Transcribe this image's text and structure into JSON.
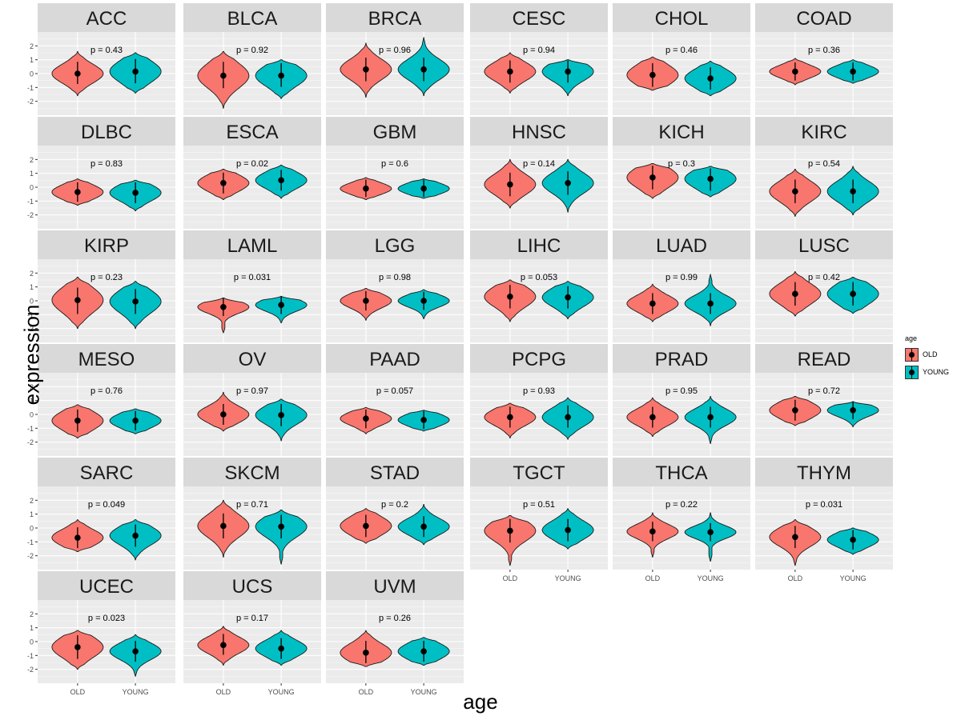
{
  "chart_data": {
    "type": "violin",
    "title": "",
    "xlabel": "age",
    "ylabel": "expression",
    "categories": [
      "OLD",
      "YOUNG"
    ],
    "ylim": [
      -3,
      3
    ],
    "yticks": [
      -2,
      -1,
      0,
      1,
      2
    ],
    "legend": {
      "title": "age",
      "position": "right",
      "entries": [
        {
          "name": "OLD",
          "color": "#F8766D"
        },
        {
          "name": "YOUNG",
          "color": "#00BFC4"
        }
      ]
    },
    "panels": [
      {
        "name": "ACC",
        "p": "p = 0.43",
        "old": {
          "med": 0.0,
          "lo": -1.6,
          "hi": 1.6,
          "q1": -0.4,
          "q3": 0.5
        },
        "young": {
          "med": 0.15,
          "lo": -1.4,
          "hi": 1.5,
          "q1": -0.35,
          "q3": 0.7
        }
      },
      {
        "name": "BLCA",
        "p": "p = 0.92",
        "old": {
          "med": -0.15,
          "lo": -2.5,
          "hi": 1.6,
          "q1": -0.7,
          "q3": 0.5
        },
        "young": {
          "med": -0.15,
          "lo": -1.8,
          "hi": 1.0,
          "q1": -0.6,
          "q3": 0.4
        }
      },
      {
        "name": "BRCA",
        "p": "p = 0.96",
        "old": {
          "med": 0.3,
          "lo": -1.7,
          "hi": 2.2,
          "q1": -0.2,
          "q3": 0.8
        },
        "young": {
          "med": 0.3,
          "lo": -1.6,
          "hi": 2.6,
          "q1": -0.2,
          "q3": 0.8
        }
      },
      {
        "name": "CESC",
        "p": "p = 0.94",
        "old": {
          "med": 0.15,
          "lo": -1.4,
          "hi": 1.5,
          "q1": -0.3,
          "q3": 0.6
        },
        "young": {
          "med": 0.15,
          "lo": -1.6,
          "hi": 1.0,
          "q1": -0.3,
          "q3": 0.6
        }
      },
      {
        "name": "CHOL",
        "p": "p = 0.46",
        "old": {
          "med": -0.1,
          "lo": -1.2,
          "hi": 1.2,
          "q1": -0.6,
          "q3": 0.4
        },
        "young": {
          "med": -0.35,
          "lo": -1.6,
          "hi": 0.9,
          "q1": -0.8,
          "q3": 0.1
        }
      },
      {
        "name": "COAD",
        "p": "p = 0.36",
        "old": {
          "med": 0.15,
          "lo": -0.8,
          "hi": 1.1,
          "q1": -0.15,
          "q3": 0.45
        },
        "young": {
          "med": 0.15,
          "lo": -0.7,
          "hi": 1.0,
          "q1": -0.15,
          "q3": 0.45
        }
      },
      {
        "name": "DLBC",
        "p": "p = 0.83",
        "old": {
          "med": -0.35,
          "lo": -1.3,
          "hi": 0.6,
          "q1": -0.7,
          "q3": 0.0
        },
        "young": {
          "med": -0.4,
          "lo": -1.7,
          "hi": 0.5,
          "q1": -0.8,
          "q3": 0.0
        }
      },
      {
        "name": "ESCA",
        "p": "p = 0.02",
        "old": {
          "med": 0.3,
          "lo": -0.9,
          "hi": 1.3,
          "q1": -0.1,
          "q3": 0.7
        },
        "young": {
          "med": 0.5,
          "lo": -0.8,
          "hi": 1.6,
          "q1": 0.1,
          "q3": 0.9
        }
      },
      {
        "name": "GBM",
        "p": "p = 0.6",
        "old": {
          "med": -0.1,
          "lo": -0.9,
          "hi": 0.7,
          "q1": -0.35,
          "q3": 0.2
        },
        "young": {
          "med": -0.1,
          "lo": -0.8,
          "hi": 0.6,
          "q1": -0.35,
          "q3": 0.2
        }
      },
      {
        "name": "HNSC",
        "p": "p = 0.14",
        "old": {
          "med": 0.2,
          "lo": -1.5,
          "hi": 2.0,
          "q1": -0.3,
          "q3": 0.7
        },
        "young": {
          "med": 0.3,
          "lo": -1.8,
          "hi": 2.0,
          "q1": -0.2,
          "q3": 0.8
        }
      },
      {
        "name": "KICH",
        "p": "p = 0.3",
        "old": {
          "med": 0.7,
          "lo": -0.8,
          "hi": 1.7,
          "q1": 0.2,
          "q3": 1.2
        },
        "young": {
          "med": 0.6,
          "lo": -0.7,
          "hi": 1.5,
          "q1": 0.1,
          "q3": 1.0
        }
      },
      {
        "name": "KIRC",
        "p": "p = 0.54",
        "old": {
          "med": -0.3,
          "lo": -2.1,
          "hi": 1.3,
          "q1": -0.8,
          "q3": 0.2
        },
        "young": {
          "med": -0.3,
          "lo": -2.0,
          "hi": 1.5,
          "q1": -0.8,
          "q3": 0.2
        }
      },
      {
        "name": "KIRP",
        "p": "p = 0.23",
        "old": {
          "med": 0.05,
          "lo": -2.0,
          "hi": 1.7,
          "q1": -0.6,
          "q3": 0.6
        },
        "young": {
          "med": -0.05,
          "lo": -2.0,
          "hi": 1.4,
          "q1": -0.6,
          "q3": 0.5
        }
      },
      {
        "name": "LAML",
        "p": "p = 0.031",
        "old": {
          "med": -0.45,
          "lo": -2.3,
          "hi": 0.2,
          "q1": -0.75,
          "q3": -0.15
        },
        "young": {
          "med": -0.3,
          "lo": -1.6,
          "hi": 0.3,
          "q1": -0.6,
          "q3": 0.0
        }
      },
      {
        "name": "LGG",
        "p": "p = 0.98",
        "old": {
          "med": 0.0,
          "lo": -1.4,
          "hi": 0.9,
          "q1": -0.35,
          "q3": 0.35
        },
        "young": {
          "med": 0.0,
          "lo": -1.3,
          "hi": 0.8,
          "q1": -0.3,
          "q3": 0.3
        }
      },
      {
        "name": "LIHC",
        "p": "p = 0.053",
        "old": {
          "med": 0.3,
          "lo": -1.5,
          "hi": 1.5,
          "q1": -0.2,
          "q3": 0.8
        },
        "young": {
          "med": 0.25,
          "lo": -1.3,
          "hi": 1.4,
          "q1": -0.2,
          "q3": 0.7
        }
      },
      {
        "name": "LUAD",
        "p": "p = 0.99",
        "old": {
          "med": -0.2,
          "lo": -1.5,
          "hi": 1.2,
          "q1": -0.6,
          "q3": 0.2
        },
        "young": {
          "med": -0.2,
          "lo": -1.8,
          "hi": 1.9,
          "q1": -0.6,
          "q3": 0.2
        }
      },
      {
        "name": "LUSC",
        "p": "p = 0.42",
        "old": {
          "med": 0.5,
          "lo": -1.1,
          "hi": 2.1,
          "q1": 0.0,
          "q3": 1.0
        },
        "young": {
          "med": 0.5,
          "lo": -0.9,
          "hi": 1.7,
          "q1": 0.0,
          "q3": 1.0
        }
      },
      {
        "name": "MESO",
        "p": "p = 0.76",
        "old": {
          "med": -0.45,
          "lo": -1.7,
          "hi": 0.7,
          "q1": -0.9,
          "q3": 0.0
        },
        "young": {
          "med": -0.45,
          "lo": -1.4,
          "hi": 0.4,
          "q1": -0.8,
          "q3": -0.1
        }
      },
      {
        "name": "OV",
        "p": "p = 0.97",
        "old": {
          "med": 0.0,
          "lo": -1.2,
          "hi": 1.6,
          "q1": -0.4,
          "q3": 0.4
        },
        "young": {
          "med": -0.05,
          "lo": -1.9,
          "hi": 1.1,
          "q1": -0.5,
          "q3": 0.4
        }
      },
      {
        "name": "PAAD",
        "p": "p = 0.057",
        "old": {
          "med": -0.3,
          "lo": -1.4,
          "hi": 0.5,
          "q1": -0.65,
          "q3": 0.0
        },
        "young": {
          "med": -0.4,
          "lo": -1.2,
          "hi": 0.3,
          "q1": -0.7,
          "q3": -0.1
        }
      },
      {
        "name": "PCPG",
        "p": "p = 0.93",
        "old": {
          "med": -0.2,
          "lo": -1.7,
          "hi": 0.8,
          "q1": -0.6,
          "q3": 0.2
        },
        "young": {
          "med": -0.2,
          "lo": -1.8,
          "hi": 1.2,
          "q1": -0.6,
          "q3": 0.3
        }
      },
      {
        "name": "PRAD",
        "p": "p = 0.95",
        "old": {
          "med": -0.2,
          "lo": -1.6,
          "hi": 1.2,
          "q1": -0.6,
          "q3": 0.2
        },
        "young": {
          "med": -0.2,
          "lo": -2.1,
          "hi": 1.3,
          "q1": -0.6,
          "q3": 0.2
        }
      },
      {
        "name": "READ",
        "p": "p = 0.72",
        "old": {
          "med": 0.3,
          "lo": -0.8,
          "hi": 1.3,
          "q1": -0.1,
          "q3": 0.7
        },
        "young": {
          "med": 0.3,
          "lo": -0.9,
          "hi": 0.9,
          "q1": 0.0,
          "q3": 0.6
        }
      },
      {
        "name": "SARC",
        "p": "p = 0.049",
        "old": {
          "med": -0.7,
          "lo": -1.7,
          "hi": 0.6,
          "q1": -1.1,
          "q3": -0.3
        },
        "young": {
          "med": -0.55,
          "lo": -2.3,
          "hi": 0.6,
          "q1": -1.0,
          "q3": -0.1
        }
      },
      {
        "name": "SKCM",
        "p": "p = 0.71",
        "old": {
          "med": 0.15,
          "lo": -2.1,
          "hi": 2.0,
          "q1": -0.4,
          "q3": 0.7
        },
        "young": {
          "med": 0.1,
          "lo": -2.6,
          "hi": 1.3,
          "q1": -0.4,
          "q3": 0.6
        }
      },
      {
        "name": "STAD",
        "p": "p = 0.2",
        "old": {
          "med": 0.15,
          "lo": -1.1,
          "hi": 1.4,
          "q1": -0.3,
          "q3": 0.6
        },
        "young": {
          "med": 0.1,
          "lo": -1.2,
          "hi": 1.7,
          "q1": -0.3,
          "q3": 0.5
        }
      },
      {
        "name": "TGCT",
        "p": "p = 0.51",
        "old": {
          "med": -0.2,
          "lo": -2.7,
          "hi": 0.9,
          "q1": -0.7,
          "q3": 0.3
        },
        "young": {
          "med": -0.15,
          "lo": -1.5,
          "hi": 1.4,
          "q1": -0.6,
          "q3": 0.3
        }
      },
      {
        "name": "THCA",
        "p": "p = 0.22",
        "old": {
          "med": -0.25,
          "lo": -2.1,
          "hi": 1.1,
          "q1": -0.6,
          "q3": 0.1
        },
        "young": {
          "med": -0.3,
          "lo": -2.4,
          "hi": 1.1,
          "q1": -0.6,
          "q3": 0.0
        }
      },
      {
        "name": "THYM",
        "p": "p = 0.031",
        "old": {
          "med": -0.65,
          "lo": -2.7,
          "hi": 0.6,
          "q1": -1.1,
          "q3": -0.2
        },
        "young": {
          "med": -0.85,
          "lo": -1.9,
          "hi": 0.0,
          "q1": -1.2,
          "q3": -0.5
        }
      },
      {
        "name": "UCEC",
        "p": "p = 0.023",
        "old": {
          "med": -0.4,
          "lo": -2.0,
          "hi": 0.8,
          "q1": -0.9,
          "q3": 0.1
        },
        "young": {
          "med": -0.7,
          "lo": -2.5,
          "hi": 0.5,
          "q1": -1.1,
          "q3": -0.3
        }
      },
      {
        "name": "UCS",
        "p": "p = 0.17",
        "old": {
          "med": -0.25,
          "lo": -1.7,
          "hi": 1.1,
          "q1": -0.6,
          "q3": 0.2
        },
        "young": {
          "med": -0.5,
          "lo": -1.7,
          "hi": 0.8,
          "q1": -0.9,
          "q3": -0.1
        }
      },
      {
        "name": "UVM",
        "p": "p = 0.26",
        "old": {
          "med": -0.8,
          "lo": -1.8,
          "hi": 0.8,
          "q1": -1.2,
          "q3": -0.3
        },
        "young": {
          "med": -0.7,
          "lo": -1.7,
          "hi": 0.3,
          "q1": -1.1,
          "q3": -0.3
        }
      }
    ]
  }
}
